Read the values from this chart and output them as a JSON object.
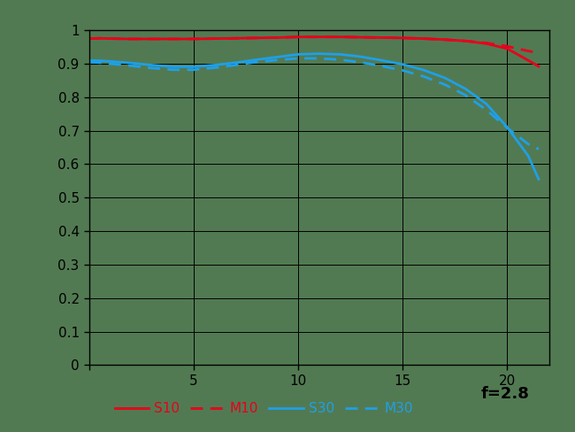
{
  "title": "",
  "xlabel": "",
  "ylabel": "",
  "xlim": [
    0,
    22
  ],
  "ylim": [
    0,
    1.0
  ],
  "xticks": [
    0,
    5,
    10,
    15,
    20
  ],
  "yticks": [
    0,
    0.1,
    0.2,
    0.3,
    0.4,
    0.5,
    0.6,
    0.7,
    0.8,
    0.9,
    1
  ],
  "background_color": "#527a52",
  "annotation": "f=2.8",
  "legend_labels": [
    "S10",
    "M10",
    "S30",
    "M30"
  ],
  "S10_x": [
    0,
    0.5,
    1,
    2,
    3,
    4,
    5,
    6,
    7,
    8,
    9,
    10,
    11,
    12,
    13,
    14,
    15,
    16,
    17,
    18,
    19,
    20,
    21,
    21.5
  ],
  "S10_y": [
    0.975,
    0.976,
    0.975,
    0.974,
    0.974,
    0.974,
    0.974,
    0.975,
    0.976,
    0.977,
    0.978,
    0.98,
    0.98,
    0.98,
    0.979,
    0.978,
    0.977,
    0.975,
    0.972,
    0.968,
    0.96,
    0.945,
    0.91,
    0.892
  ],
  "M10_x": [
    0,
    0.5,
    1,
    2,
    3,
    4,
    5,
    6,
    7,
    8,
    9,
    10,
    11,
    12,
    13,
    14,
    15,
    16,
    17,
    18,
    19,
    20,
    21,
    21.5
  ],
  "M10_y": [
    0.975,
    0.976,
    0.975,
    0.974,
    0.974,
    0.974,
    0.974,
    0.975,
    0.976,
    0.977,
    0.978,
    0.98,
    0.98,
    0.98,
    0.979,
    0.978,
    0.977,
    0.975,
    0.972,
    0.968,
    0.962,
    0.952,
    0.938,
    0.932
  ],
  "S30_x": [
    0,
    0.5,
    1,
    2,
    3,
    4,
    5,
    6,
    7,
    8,
    9,
    10,
    11,
    12,
    13,
    14,
    15,
    16,
    17,
    18,
    19,
    20,
    21,
    21.5
  ],
  "S30_y": [
    0.91,
    0.909,
    0.907,
    0.902,
    0.896,
    0.891,
    0.891,
    0.896,
    0.903,
    0.912,
    0.92,
    0.928,
    0.93,
    0.928,
    0.921,
    0.91,
    0.898,
    0.881,
    0.858,
    0.825,
    0.78,
    0.71,
    0.625,
    0.555
  ],
  "M30_x": [
    0,
    0.5,
    1,
    2,
    3,
    4,
    5,
    6,
    7,
    8,
    9,
    10,
    11,
    12,
    13,
    14,
    15,
    16,
    17,
    18,
    19,
    20,
    21,
    21.5
  ],
  "M30_y": [
    0.905,
    0.903,
    0.9,
    0.894,
    0.887,
    0.882,
    0.882,
    0.888,
    0.896,
    0.905,
    0.911,
    0.916,
    0.916,
    0.912,
    0.904,
    0.893,
    0.88,
    0.862,
    0.838,
    0.806,
    0.762,
    0.708,
    0.66,
    0.645
  ],
  "S10_color": "#e8001c",
  "M10_color": "#e8001c",
  "S30_color": "#1ea0e8",
  "M30_color": "#1ea0e8",
  "line_width": 2.0,
  "grid_color": "#000000",
  "plot_bg_color": "#527a52"
}
